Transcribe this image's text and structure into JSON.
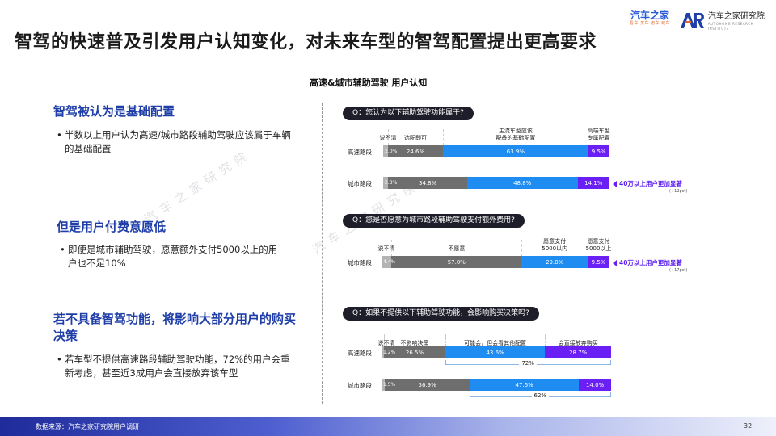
{
  "title": "智驾的快速普及引发用户认知变化，对未来车型的智驾配置提出更高要求",
  "logos": {
    "brand1_main": "汽车之家",
    "brand1_sub": "看车·买车·用车·玩车",
    "brand2_main": "汽车之家研究院",
    "brand2_sub": "AUTOHOME RESEARCH INSTITUTE"
  },
  "chart_title": "高速&城市辅助驾驶 用户认知",
  "insights": [
    {
      "heading": "智驾被认为是基础配置",
      "body": "半数以上用户认为高速/城市路段辅助驾驶应该属于车辆的基础配置"
    },
    {
      "heading": "但是用户付费意愿低",
      "body": "即便是城市辅助驾驶，愿意额外支付5000以上的用户也不足10%"
    },
    {
      "heading": "若不具备智驾功能，将影响大部分用户的购买决策",
      "body": "若车型不提供高速路段辅助驾驶功能，72%的用户会重新考虑，甚至近3成用户会直接放弃该车型"
    }
  ],
  "watermark": "汽车之家研究院",
  "colors": {
    "gray_light": "#b3b3b3",
    "gray_dark": "#6e6e6e",
    "blue": "#1e8cf0",
    "purple": "#6a1ff5",
    "pill": "#1e1e2a"
  },
  "chart_data": [
    {
      "type": "bar",
      "stacked": true,
      "orientation": "horizontal",
      "question": "Q：您认为以下辅助驾驶功能属于?",
      "categories": [
        "说不清",
        "选配即可",
        "主流车型应该配备的基础配置",
        "高端车型专属配置"
      ],
      "header_lines": [
        [
          "说不清"
        ],
        [
          "选配即可"
        ],
        [
          "主流车型应该",
          "配备的基础配置"
        ],
        [
          "高端车型",
          "专属配置"
        ]
      ],
      "rows": [
        {
          "name": "高速路段",
          "values": [
            2.0,
            24.6,
            63.9,
            9.5
          ],
          "labels": [
            "2.0%",
            "24.6%",
            "63.9%",
            "9.5%"
          ]
        },
        {
          "name": "城市路段",
          "values": [
            2.3,
            34.8,
            48.8,
            14.1
          ],
          "labels": [
            "2.3%",
            "34.8%",
            "48.8%",
            "14.1%"
          ],
          "callout": "40万以上用户更加显著",
          "callout_sub": "(+12pct)"
        }
      ]
    },
    {
      "type": "bar",
      "stacked": true,
      "orientation": "horizontal",
      "question": "Q：您是否愿意为城市路段辅助驾驶支付额外费用?",
      "categories": [
        "说不清",
        "不愿意",
        "愿意支付5000以内",
        "愿意支付5000以上"
      ],
      "header_lines": [
        [
          "说不清"
        ],
        [
          "不愿意"
        ],
        [
          "愿意支付",
          "5000以内"
        ],
        [
          "愿意支付",
          "5000以上"
        ]
      ],
      "rows": [
        {
          "name": "城市路段",
          "values": [
            4.4,
            57.0,
            29.0,
            9.5
          ],
          "labels": [
            "4.4%",
            "57.0%",
            "29.0%",
            "9.5%"
          ],
          "callout": "40万以上用户更加显著",
          "callout_sub": "(+17pct)"
        }
      ]
    },
    {
      "type": "bar",
      "stacked": true,
      "orientation": "horizontal",
      "question": "Q：如果不提供以下辅助驾驶功能，会影响购买决策吗?",
      "categories": [
        "说不清",
        "不影响决策",
        "可能会，但会看其他配置",
        "会直接放弃购买"
      ],
      "header_lines": [
        [
          "说不清"
        ],
        [
          "不影响决策"
        ],
        [
          "可能会，但会看其他配置"
        ],
        [
          "会直接放弃购买"
        ]
      ],
      "rows": [
        {
          "name": "高速路段",
          "values": [
            1.2,
            26.5,
            43.6,
            28.7
          ],
          "labels": [
            "1.2%",
            "26.5%",
            "43.6%",
            "28.7%"
          ],
          "bracket": "72%"
        },
        {
          "name": "城市路段",
          "values": [
            1.5,
            36.9,
            47.6,
            14.0
          ],
          "labels": [
            "1.5%",
            "36.9%",
            "47.6%",
            "14.0%"
          ],
          "bracket": "62%"
        }
      ]
    }
  ],
  "footer": {
    "source": "数据来源：汽车之家研究院用户调研",
    "page": "32"
  }
}
